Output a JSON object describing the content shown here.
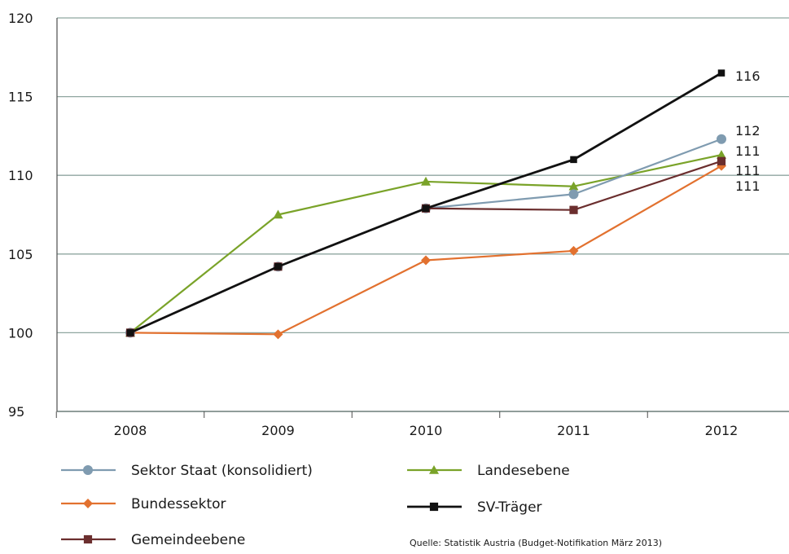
{
  "chart_data": {
    "type": "line",
    "x": [
      "2008",
      "2009",
      "2010",
      "2011",
      "2012"
    ],
    "ylim": [
      95,
      120
    ],
    "yticks": [
      95,
      100,
      105,
      110,
      115,
      120
    ],
    "grid": "horizontal",
    "legend_placement": "bottom",
    "series": [
      {
        "name": "Sektor Staat (konsolidiert)",
        "color": "#7f9bb0",
        "marker": "circle",
        "values": [
          100,
          104.2,
          107.9,
          108.8,
          112.3
        ],
        "end_label": "112"
      },
      {
        "name": "Bundessektor",
        "color": "#e2712f",
        "marker": "diamond",
        "values": [
          100,
          99.9,
          104.6,
          105.2,
          110.6
        ],
        "end_label": "111"
      },
      {
        "name": "Gemeindeebene",
        "color": "#6b2e2e",
        "marker": "square",
        "values": [
          100,
          104.2,
          107.9,
          107.8,
          110.9
        ],
        "end_label": "111"
      },
      {
        "name": "Landesebene",
        "color": "#7aa329",
        "marker": "triangle",
        "values": [
          100,
          107.5,
          109.6,
          109.3,
          111.3
        ],
        "end_label": "111"
      },
      {
        "name": "SV-Träger",
        "color": "#111111",
        "marker": "square",
        "values": [
          100,
          104.2,
          107.9,
          111.0,
          116.5
        ],
        "end_label": "116"
      }
    ],
    "source": "Quelle: Statistik Austria (Budget-Notifikation März 2013)"
  }
}
